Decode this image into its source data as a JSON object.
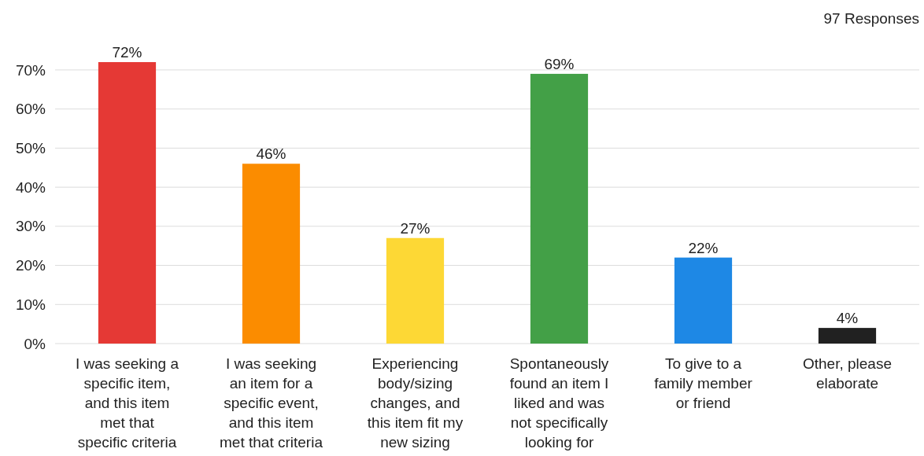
{
  "chart_data": {
    "type": "bar",
    "categories": [
      "I was seeking a\nspecific item,\nand this item\nmet that\nspecific criteria",
      "I was seeking\nan item for a\nspecific event,\nand this item\nmet that criteria",
      "Experiencing\nbody/sizing\nchanges, and\nthis item fit my\nnew sizing",
      "Spontaneously\nfound an item I\nliked and was\nnot specifically\nlooking for",
      "To give to a\nfamily member\nor friend",
      "Other, please\nelaborate"
    ],
    "values": [
      72,
      46,
      27,
      69,
      22,
      4
    ],
    "colors": [
      "#e53935",
      "#fb8c00",
      "#fdd835",
      "#43a047",
      "#1e88e5",
      "#212121"
    ],
    "value_labels": [
      "72%",
      "46%",
      "27%",
      "69%",
      "22%",
      "4%"
    ],
    "ylim": [
      0,
      72
    ],
    "yticks": [
      {
        "value": 0,
        "label": "0%"
      },
      {
        "value": 10,
        "label": "10%"
      },
      {
        "value": 20,
        "label": "20%"
      },
      {
        "value": 30,
        "label": "30%"
      },
      {
        "value": 40,
        "label": "40%"
      },
      {
        "value": 50,
        "label": "50%"
      },
      {
        "value": 60,
        "label": "60%"
      },
      {
        "value": 70,
        "label": "70%"
      }
    ],
    "grid": "y",
    "annotations": [
      "97 Responses"
    ]
  }
}
